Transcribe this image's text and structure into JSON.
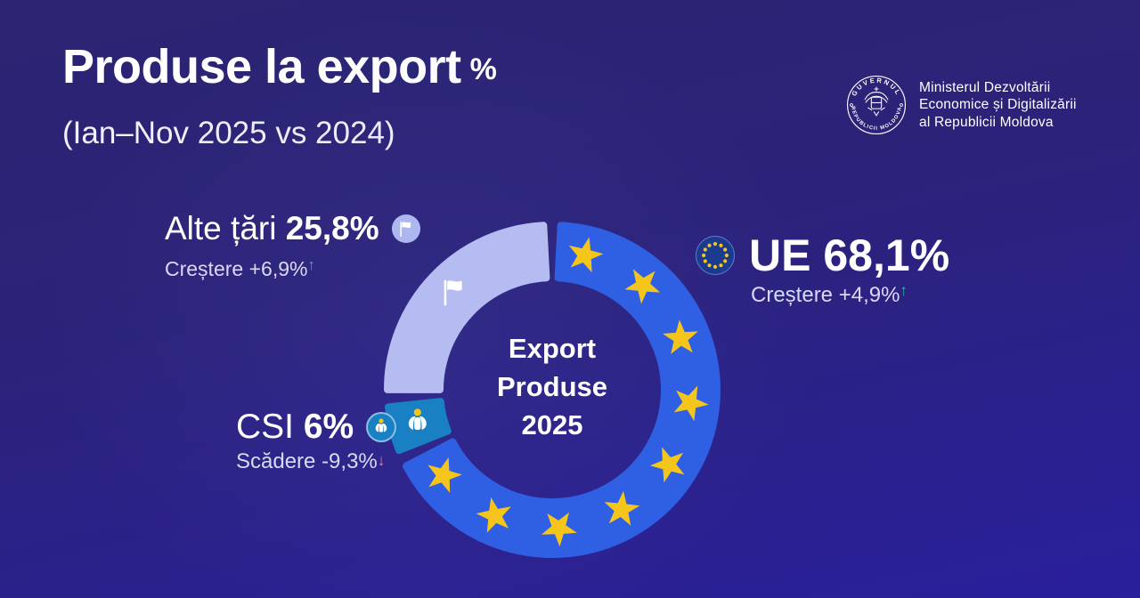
{
  "header": {
    "title": "Produse la export",
    "title_suffix": "%",
    "subtitle": "(Ian–Nov 2025 vs 2024)"
  },
  "branding": {
    "seal_text_top": "GUVERNUL",
    "seal_text_bottom": "REPUBLICII MOLDOVA",
    "ministry_lines": [
      "Ministerul Dezvoltării",
      "Economice și Digitalizării",
      "al Republicii Moldova"
    ]
  },
  "chart_data": {
    "type": "donut",
    "title": "Export Produse 2025",
    "center_label_lines": [
      "Export",
      "Produse",
      "2025"
    ],
    "units": "%",
    "period": "Ian–Nov 2025 vs 2024",
    "start_angle_deg": 0,
    "clockwise": true,
    "gap_degrees": 6,
    "outer_radius": 185,
    "inner_radius": 126,
    "segments": [
      {
        "id": "ue",
        "label": "UE",
        "value": 68.1,
        "change_pct": 4.9,
        "change_label": "Creștere",
        "color": "#2f5fe2",
        "icon": "eu-stars",
        "star_count": 9,
        "star_color": "#f5c51c"
      },
      {
        "id": "csi",
        "label": "CSI",
        "value": 6,
        "change_pct": -9.3,
        "change_label": "Scădere",
        "color": "#1a80c4",
        "icon": "cis-emblem",
        "icon_angle": 256.5
      },
      {
        "id": "alte-tari",
        "label": "Alte țări",
        "value": 25.8,
        "change_pct": 6.9,
        "change_label": "Creștere",
        "color": "#b4bcf2",
        "icon": "white-flag",
        "icon_angle": 314.5
      }
    ]
  },
  "labels": {
    "alte": {
      "name": "Alte țări",
      "value": "25,8%",
      "change_label": "Creștere",
      "change_value": "+6,9%",
      "trend_glyph": "↑"
    },
    "ue": {
      "name": "UE",
      "value": "68,1%",
      "change_label": "Creștere",
      "change_value": "+4,9%",
      "trend_glyph": "↑"
    },
    "csi": {
      "name": "CSI",
      "value": "6%",
      "change_label": "Scădere",
      "change_value": "-9,3%",
      "trend_glyph": "↓"
    }
  },
  "colors": {
    "background_top": "#2b2572",
    "background_bottom": "#2a1f9c",
    "eu_blue": "#2f5fe2",
    "csi_blue": "#1a80c4",
    "other_lavender": "#b4bcf2",
    "star_yellow": "#f5c51c",
    "trend_up": "#2fb9ac",
    "trend_down": "#f27c9e"
  }
}
